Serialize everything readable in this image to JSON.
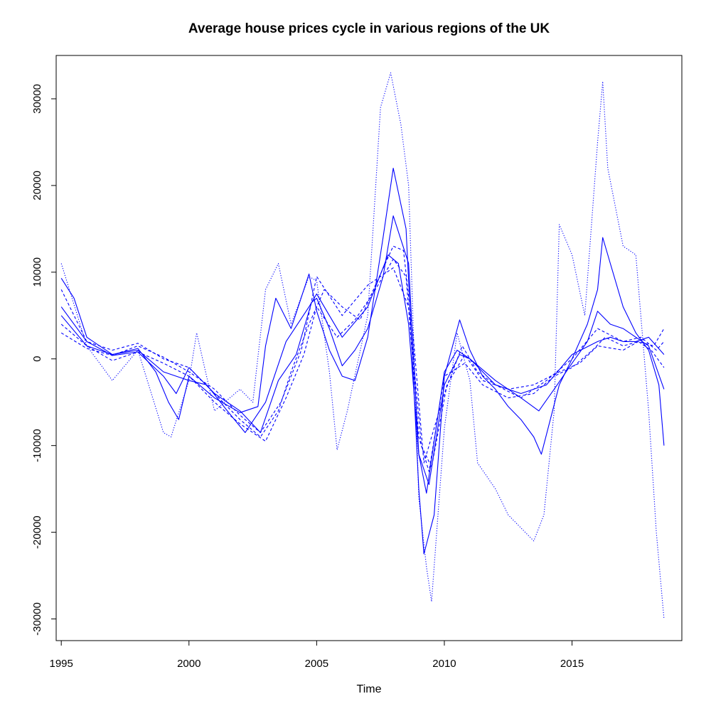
{
  "chart_data": {
    "type": "line",
    "title": "Average house prices cycle in various regions of the UK",
    "xlabel": "Time",
    "ylabel": "",
    "xlim": [
      1994.8,
      2019.3
    ],
    "ylim": [
      -32500,
      35000
    ],
    "xticks": [
      1995,
      2000,
      2005,
      2010,
      2015
    ],
    "yticks": [
      -30000,
      -20000,
      -10000,
      0,
      10000,
      20000,
      30000
    ],
    "grid": false,
    "legend": "none",
    "series_color": "#0000ff",
    "series": [
      {
        "style": "solid",
        "x": [
          1995,
          1995.5,
          1996,
          1997,
          1998,
          1998.7,
          1999.2,
          1999.6,
          2000,
          2001,
          2002,
          2002.7,
          2003,
          2003.4,
          2004,
          2004.7,
          2005,
          2005.5,
          2006,
          2006.5,
          2007,
          2007.6,
          2008,
          2008.5,
          2009,
          2009.2,
          2009.6,
          2010,
          2010.6,
          2011,
          2011.5,
          2012,
          2012.5,
          2013,
          2013.5,
          2013.8,
          2014.5,
          2015,
          2015.6,
          2016,
          2016.2,
          2016.5,
          2017,
          2017.5,
          2018,
          2018.4,
          2018.6
        ],
        "y": [
          9300,
          7000,
          2500,
          500,
          1200,
          -1500,
          -5000,
          -7000,
          -2000,
          -4500,
          -6200,
          -5500,
          1500,
          7000,
          3500,
          9800,
          5500,
          1000,
          -2000,
          -2500,
          2500,
          14000,
          22000,
          15000,
          -15000,
          -22500,
          -18000,
          -2000,
          4500,
          1000,
          -2000,
          -3500,
          -5500,
          -7000,
          -9000,
          -11000,
          -3000,
          0,
          4000,
          8000,
          14000,
          11000,
          6000,
          3000,
          1000,
          -3000,
          -10000
        ]
      },
      {
        "style": "solid",
        "x": [
          1995,
          1996,
          1997,
          1998,
          1999,
          1999.5,
          2000,
          2001,
          2002,
          2002.8,
          2003.5,
          2004.2,
          2004.8,
          2005,
          2005.5,
          2006,
          2006.5,
          2007,
          2007.6,
          2008,
          2008.6,
          2009,
          2009.3,
          2010,
          2010.5,
          2011,
          2012,
          2013,
          2013.7,
          2014.3,
          2015,
          2015.6,
          2016,
          2016.5,
          2017,
          2017.5,
          2018,
          2018.6
        ],
        "y": [
          6000,
          2000,
          400,
          800,
          -2000,
          -4000,
          -1000,
          -4000,
          -6000,
          -8500,
          -2500,
          500,
          6500,
          7000,
          3500,
          -800,
          1000,
          3500,
          9500,
          16500,
          11000,
          -11000,
          -15500,
          -1500,
          1000,
          0,
          -2500,
          -4500,
          -6000,
          -3500,
          -500,
          2000,
          5500,
          4000,
          3500,
          2500,
          1500,
          -3500
        ]
      },
      {
        "style": "solid",
        "x": [
          1995,
          1996,
          1997,
          1998,
          1999,
          2000,
          2000.7,
          2001.5,
          2002.2,
          2003,
          2003.8,
          2004.7,
          2005,
          2005.5,
          2006,
          2007,
          2007.8,
          2008.2,
          2008.6,
          2009,
          2009.4,
          2010,
          2010.6,
          2011,
          2012,
          2013,
          2014,
          2015,
          2016,
          2016.5,
          2017,
          2017.5,
          2018,
          2018.6
        ],
        "y": [
          5000,
          1500,
          500,
          1000,
          -1500,
          -2500,
          -3000,
          -6000,
          -8500,
          -5000,
          2000,
          6000,
          7500,
          5000,
          2500,
          6000,
          12000,
          11000,
          4000,
          -11000,
          -14500,
          -3000,
          500,
          0,
          -3000,
          -4000,
          -3000,
          500,
          2000,
          2500,
          2000,
          2000,
          2500,
          500
        ]
      },
      {
        "style": "dashed",
        "x": [
          1995,
          1996,
          1997,
          1998,
          1999,
          2000,
          2001,
          2002,
          2002.8,
          2003.5,
          2004,
          2004.7,
          2005.3,
          2006,
          2006.7,
          2007.3,
          2008,
          2008.4,
          2008.8,
          2009.2,
          2010,
          2010.7,
          2011.3,
          2012,
          2013,
          2014,
          2015,
          2016,
          2017,
          2017.7,
          2018.3,
          2018.6
        ],
        "y": [
          8000,
          2000,
          1000,
          1800,
          0,
          -1000,
          -4000,
          -7000,
          -9000,
          -6000,
          -1500,
          4000,
          8000,
          6000,
          4500,
          8500,
          13000,
          12500,
          2000,
          -12000,
          -4000,
          1500,
          -1500,
          -3000,
          -4500,
          -2500,
          0,
          3500,
          2000,
          2500,
          1000,
          2000
        ]
      },
      {
        "style": "dashed",
        "x": [
          1995,
          1996,
          1997,
          1998,
          1999,
          2000,
          2001,
          2002,
          2003,
          2003.8,
          2004.5,
          2005,
          2005.8,
          2006.5,
          2007.2,
          2008,
          2008.5,
          2009,
          2009.4,
          2010,
          2010.8,
          2011.5,
          2012.5,
          2013.5,
          2014.3,
          2015,
          2015.8,
          2016.3,
          2017,
          2017.6,
          2018.1,
          2018.6
        ],
        "y": [
          4000,
          1500,
          -200,
          800,
          -500,
          -2000,
          -5000,
          -7500,
          -9500,
          -4500,
          500,
          6000,
          2500,
          4500,
          7500,
          11500,
          9500,
          -9000,
          -13000,
          -2000,
          -500,
          -3000,
          -4500,
          -4000,
          -2000,
          -1000,
          1000,
          2500,
          1500,
          2000,
          1000,
          -1000
        ]
      },
      {
        "style": "dashed",
        "x": [
          1995,
          1996,
          1997,
          1998,
          1999,
          2000,
          2001,
          2002,
          2002.8,
          2003.6,
          2004.4,
          2005,
          2006,
          2007,
          2008,
          2008.6,
          2009.1,
          2009.5,
          2010.1,
          2010.8,
          2011.5,
          2012.5,
          2013.5,
          2014.5,
          2015.3,
          2016,
          2017,
          2017.6,
          2018.2,
          2018.6
        ],
        "y": [
          3000,
          1200,
          400,
          1500,
          200,
          -1500,
          -3500,
          -6500,
          -8500,
          -5000,
          1000,
          9500,
          5000,
          8500,
          10500,
          6000,
          -10000,
          -12500,
          -3000,
          500,
          -2500,
          -3500,
          -3000,
          -1500,
          -500,
          1500,
          1000,
          2000,
          1500,
          3500
        ]
      },
      {
        "style": "dotted",
        "x": [
          1995,
          1996,
          1997,
          1998,
          1999,
          1999.3,
          2000,
          2000.3,
          2001,
          2002,
          2002.5,
          2003,
          2003.5,
          2004,
          2004.7,
          2005,
          2005.5,
          2005.8,
          2006.2,
          2007,
          2007.5,
          2007.9,
          2008.3,
          2008.6,
          2009,
          2009.3,
          2009.5,
          2010,
          2010.5,
          2011,
          2011.3,
          2012,
          2012.5,
          2013,
          2013.5,
          2013.9,
          2014.3,
          2014.5,
          2015,
          2015.5,
          2016,
          2016.2,
          2016.4,
          2017,
          2017.5,
          2018,
          2018.3,
          2018.6
        ],
        "y": [
          11000,
          1500,
          -2500,
          1000,
          -8500,
          -9000,
          -2500,
          3000,
          -6000,
          -3500,
          -5000,
          8000,
          11000,
          4000,
          9500,
          9000,
          -1500,
          -10500,
          -6000,
          5000,
          29000,
          33000,
          27000,
          20000,
          -16000,
          -24000,
          -28000,
          -8000,
          3000,
          -2500,
          -12000,
          -15000,
          -18000,
          -19500,
          -21000,
          -18000,
          -6000,
          15500,
          12000,
          5000,
          25000,
          32000,
          22000,
          13000,
          12000,
          -6000,
          -20000,
          -30000
        ]
      }
    ]
  }
}
